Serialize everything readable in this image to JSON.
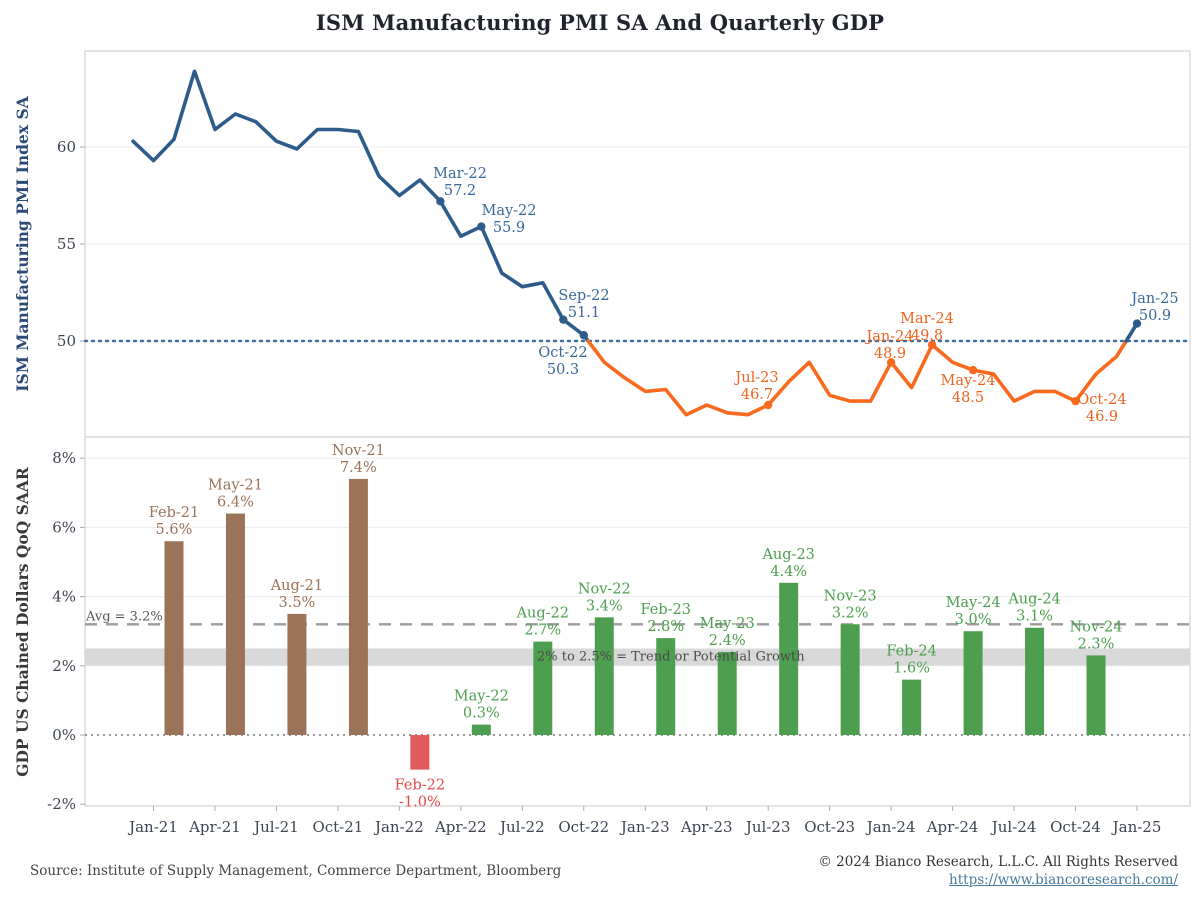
{
  "title": "ISM Manufacturing PMI SA And Quarterly GDP",
  "colors": {
    "line_blue": "#2d5c8a",
    "line_orange": "#f96a1f",
    "ann_blue": "#39689b",
    "ann_orange": "#ee6420",
    "bar_brown": "#9b7359",
    "bar_red": "#e15b5c",
    "bar_green": "#4e9e50",
    "label_brown": "#9b7359",
    "label_red": "#e04b4b",
    "label_green": "#4e9e50",
    "grid": "#ececec",
    "border": "#c9c9c9",
    "band_fill": "#d9d9d9",
    "avg_dash": "#9c9c9c",
    "zero_dot": "#999999",
    "fifty_dot": "#3a6e9e",
    "axis_text": "#3e4552",
    "axis_title_top": "#2d4a76",
    "axis_title_bottom": "#3a3a3a"
  },
  "x_axis_ticks": [
    "Jan-21",
    "Apr-21",
    "Jul-21",
    "Oct-21",
    "Jan-22",
    "Apr-22",
    "Jul-22",
    "Oct-22",
    "Jan-23",
    "Apr-23",
    "Jul-23",
    "Oct-23",
    "Jan-24",
    "Apr-24",
    "Jul-24",
    "Oct-24",
    "Jan-25"
  ],
  "chart_data": [
    {
      "type": "line",
      "name": "ism-pmi-line",
      "ylabel": "ISM Manufacturing PMI Index SA",
      "yticks": [
        "50",
        "55",
        "60"
      ],
      "ytick_values": [
        50,
        55,
        60
      ],
      "ylim": [
        45.1,
        64.8
      ],
      "reference_line": {
        "value": 50,
        "style": "dotted"
      },
      "x": [
        "Dec-20",
        "Jan-21",
        "Feb-21",
        "Mar-21",
        "Apr-21",
        "May-21",
        "Jun-21",
        "Jul-21",
        "Aug-21",
        "Sep-21",
        "Oct-21",
        "Nov-21",
        "Dec-21",
        "Jan-22",
        "Feb-22",
        "Mar-22",
        "Apr-22",
        "May-22",
        "Jun-22",
        "Jul-22",
        "Aug-22",
        "Sep-22",
        "Oct-22",
        "Nov-22",
        "Dec-22",
        "Jan-23",
        "Feb-23",
        "Mar-23",
        "Apr-23",
        "May-23",
        "Jun-23",
        "Jul-23",
        "Aug-23",
        "Sep-23",
        "Oct-23",
        "Nov-23",
        "Dec-23",
        "Jan-24",
        "Feb-24",
        "Mar-24",
        "Apr-24",
        "May-24",
        "Jun-24",
        "Jul-24",
        "Aug-24",
        "Sep-24",
        "Oct-24",
        "Nov-24",
        "Dec-24",
        "Jan-25"
      ],
      "values": [
        60.3,
        59.3,
        60.4,
        63.9,
        60.9,
        61.7,
        61.3,
        60.3,
        59.9,
        60.9,
        60.9,
        60.8,
        58.5,
        57.5,
        58.3,
        57.2,
        55.4,
        55.9,
        53.5,
        52.8,
        53.0,
        51.1,
        50.3,
        48.9,
        48.1,
        47.4,
        47.5,
        46.2,
        46.7,
        46.3,
        46.2,
        46.7,
        47.9,
        48.9,
        47.2,
        46.9,
        46.9,
        48.9,
        47.6,
        49.8,
        48.9,
        48.5,
        48.3,
        46.9,
        47.4,
        47.4,
        46.9,
        48.3,
        49.2,
        50.9
      ],
      "annotations": [
        {
          "index": 15,
          "label": "Mar-22",
          "value": "57.2"
        },
        {
          "index": 17,
          "label": "May-22",
          "value": "55.9"
        },
        {
          "index": 21,
          "label": "Sep-22",
          "value": "51.1"
        },
        {
          "index": 22,
          "label": "Oct-22",
          "value": "50.3"
        },
        {
          "index": 31,
          "label": "Jul-23",
          "value": "46.7"
        },
        {
          "index": 37,
          "label": "Jan-24",
          "value": "48.9"
        },
        {
          "index": 39,
          "label": "Mar-24",
          "value": "49.8"
        },
        {
          "index": 41,
          "label": "May-24",
          "value": "48.5"
        },
        {
          "index": 46,
          "label": "Oct-24",
          "value": "46.9"
        },
        {
          "index": 49,
          "label": "Jan-25",
          "value": "50.9"
        }
      ]
    },
    {
      "type": "bar",
      "name": "gdp-bars",
      "ylabel": "GDP US Chained Dollars QoQ SAAR",
      "yticks": [
        "8%",
        "6%",
        "4%",
        "2%",
        "0%",
        "-2%"
      ],
      "ytick_values": [
        8,
        6,
        4,
        2,
        0,
        -2
      ],
      "ylim": [
        -2.1,
        8.6
      ],
      "categories": [
        "Feb-21",
        "May-21",
        "Aug-21",
        "Nov-21",
        "Feb-22",
        "May-22",
        "Aug-22",
        "Nov-22",
        "Feb-23",
        "May-23",
        "Aug-23",
        "Nov-23",
        "Feb-24",
        "May-24",
        "Aug-24",
        "Nov-24"
      ],
      "values": [
        5.6,
        6.4,
        3.5,
        7.4,
        -1.0,
        0.3,
        2.7,
        3.4,
        2.8,
        2.4,
        4.4,
        3.2,
        1.6,
        3.0,
        3.1,
        2.3
      ],
      "value_labels": [
        "5.6%",
        "6.4%",
        "3.5%",
        "7.4%",
        "-1.0%",
        "0.3%",
        "2.7%",
        "3.4%",
        "2.8%",
        "2.4%",
        "4.4%",
        "3.2%",
        "1.6%",
        "3.0%",
        "3.1%",
        "2.3%"
      ],
      "groups": [
        "brown",
        "brown",
        "brown",
        "brown",
        "red",
        "green",
        "green",
        "green",
        "green",
        "green",
        "green",
        "green",
        "green",
        "green",
        "green",
        "green"
      ],
      "avg_line": {
        "value": 3.2,
        "label": "Avg = 3.2%"
      },
      "band": {
        "from": 2,
        "to": 2.5,
        "label": "2% to 2.5% = Trend or Potential Growth"
      }
    }
  ],
  "footer": {
    "source": "Source: Institute of Supply Management, Commerce Department, Bloomberg",
    "copyright": "© 2024 Bianco Research, L.L.C. All Rights Reserved",
    "link": "https://www.biancoresearch.com/"
  }
}
